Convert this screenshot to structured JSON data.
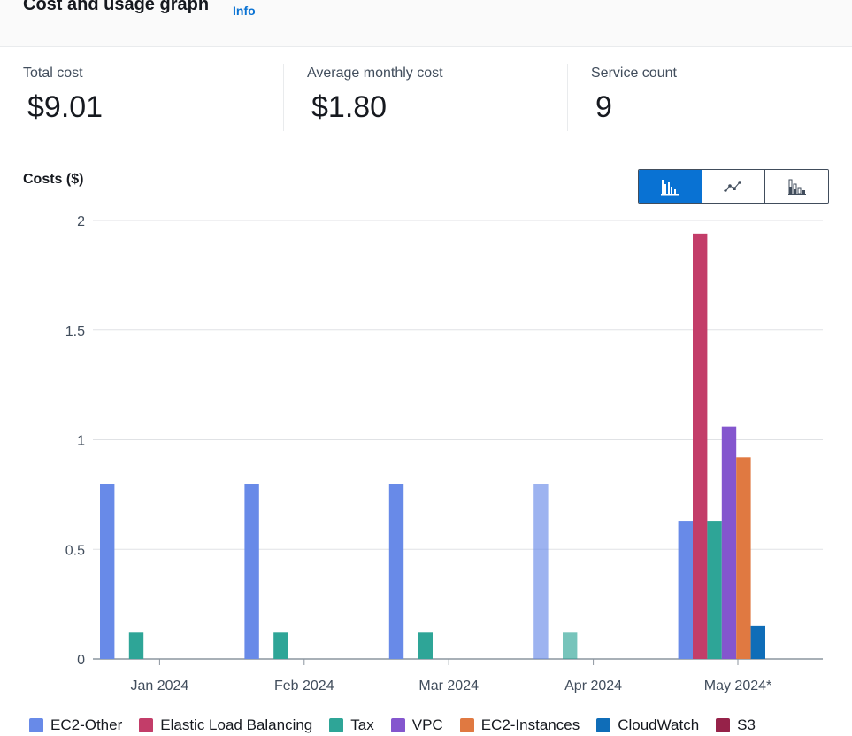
{
  "header": {
    "title": "Cost and usage graph",
    "info_link": "Info"
  },
  "metrics": [
    {
      "label": "Total cost",
      "value": "$9.01"
    },
    {
      "label": "Average monthly cost",
      "value": "$1.80"
    },
    {
      "label": "Service count",
      "value": "9"
    }
  ],
  "chart_toggle": {
    "options": [
      "bar-chart-icon",
      "line-chart-icon",
      "stacked-bar-chart-icon"
    ],
    "selected": "bar-chart-icon"
  },
  "chart_data": {
    "type": "bar",
    "ylabel": "Costs ($)",
    "ylim": [
      0,
      2
    ],
    "yticks": [
      "0",
      "0.5",
      "1",
      "1.5",
      "2"
    ],
    "categories": [
      "Jan 2024",
      "Feb 2024",
      "Mar 2024",
      "Apr 2024",
      "May 2024*"
    ],
    "series": [
      {
        "name": "EC2-Other",
        "color": "#688ae8",
        "values": [
          0.8,
          0.8,
          0.8,
          0.8,
          0.63
        ]
      },
      {
        "name": "Elastic Load Balancing",
        "color": "#c33d69",
        "values": [
          0,
          0,
          0,
          0,
          1.94
        ]
      },
      {
        "name": "Tax",
        "color": "#2ea597",
        "values": [
          0.12,
          0.12,
          0.12,
          0.12,
          0.63
        ]
      },
      {
        "name": "VPC",
        "color": "#8456ce",
        "values": [
          0,
          0,
          0,
          0,
          1.06
        ]
      },
      {
        "name": "EC2-Instances",
        "color": "#e07941",
        "values": [
          0,
          0,
          0,
          0,
          0.92
        ]
      },
      {
        "name": "CloudWatch",
        "color": "#0f6db8",
        "values": [
          0,
          0,
          0,
          0,
          0.15
        ]
      },
      {
        "name": "S3",
        "color": "#962249",
        "values": [
          0,
          0,
          0,
          0,
          0
        ]
      }
    ],
    "grid": true,
    "legend_position": "bottom"
  }
}
